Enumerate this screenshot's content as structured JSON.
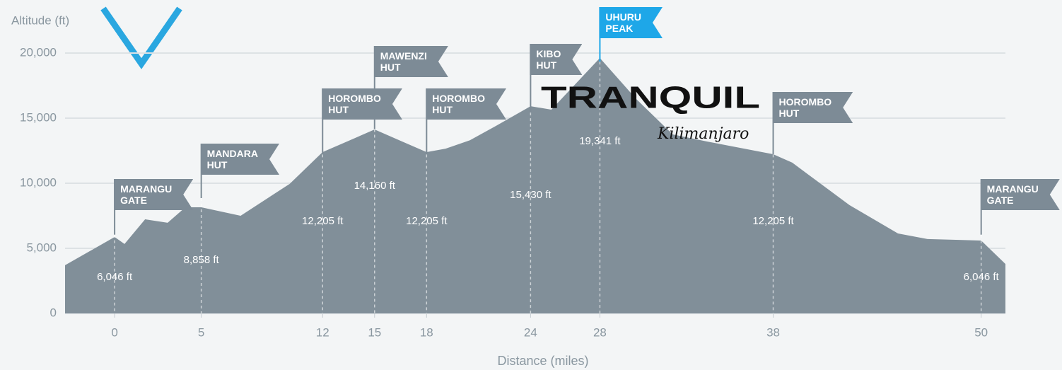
{
  "chart_data": {
    "type": "area",
    "y_label": "Altitude (ft)",
    "x_label": "Distance (miles)",
    "x": [
      -2.86,
      0,
      0.57,
      1.76,
      3.06,
      4.08,
      5,
      7.27,
      10.1,
      12,
      13.4,
      15,
      16.6,
      18,
      19.1,
      20.5,
      22,
      24,
      25.2,
      28,
      30.1,
      32.2,
      34.2,
      38,
      39.1,
      42.4,
      45.2,
      46.9,
      50,
      51.4
    ],
    "values": [
      3700,
      5870,
      5330,
      7230,
      6960,
      8150,
      8150,
      7500,
      9950,
      12390,
      13200,
      14130,
      13200,
      12390,
      12660,
      13300,
      14400,
      15920,
      15650,
      19620,
      16470,
      13750,
      13200,
      12230,
      11580,
      8320,
      6140,
      5710,
      5600,
      3800
    ],
    "color": "#818f99",
    "xlim": [
      -2.86,
      51.4
    ],
    "ylim": [
      0,
      21000
    ],
    "xticks": [
      0,
      5,
      12,
      15,
      18,
      24,
      28,
      38,
      50
    ],
    "yticks": [
      0,
      {
        "value": 5000,
        "label": "5,000"
      },
      {
        "value": 10000,
        "label": "10,000"
      },
      {
        "value": 15000,
        "label": "15,000"
      },
      {
        "value": 20000,
        "label": "20,000"
      }
    ],
    "grid": true,
    "waypoints": {
      "names": [
        "MARANGU\nGATE",
        "MANDARA\nHUT",
        "HOROMBO\nHUT",
        "MAWENZI\nHUT",
        "HOROMBO\nHUT",
        "KIBO\nHUT",
        "UHURU\nPEAK",
        "HOROMBO\nHUT",
        "MARANGU\nGATE"
      ],
      "x": [
        0,
        5,
        12,
        15,
        18,
        24,
        28,
        38,
        50
      ],
      "values": [
        6046,
        8858,
        12205,
        14160,
        12205,
        15430,
        19341,
        12205,
        6046
      ],
      "value_labels": [
        "6,046 ft",
        "8,858 ft",
        "12,205 ft",
        "14,160 ft",
        "12,205 ft",
        "15,430 ft",
        "19,341 ft",
        "12,205 ft",
        "6,046 ft"
      ],
      "colors": [
        "#7d8b96",
        "#7d8b96",
        "#7d8b96",
        "#7d8b96",
        "#7d8b96",
        "#7d8b96",
        "#1ea7e8",
        "#7d8b96",
        "#7d8b96"
      ]
    }
  },
  "logo": {
    "name": "TRANQUIL",
    "tagline": "Kilimanjaro"
  }
}
